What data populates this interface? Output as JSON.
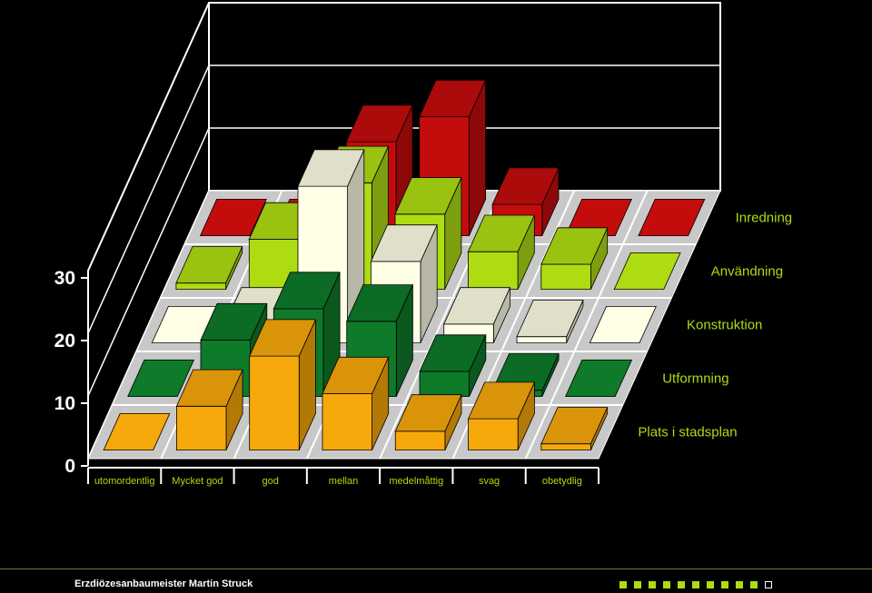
{
  "chart_data": {
    "type": "bar3d",
    "categories": [
      "utomordentlig",
      "Mycket god",
      "god",
      "mellan",
      "medelmåttig",
      "svag",
      "obetydlig"
    ],
    "ylim": [
      0,
      30
    ],
    "yticks": [
      0,
      10,
      20,
      30
    ],
    "series": [
      {
        "name": "Plats i stadsplan",
        "color": "#F7A80A",
        "values": [
          0,
          7,
          15,
          9,
          3,
          5,
          1
        ]
      },
      {
        "name": "Utformning",
        "color": "#0E7A2A",
        "values": [
          0,
          9,
          14,
          12,
          4,
          1,
          0
        ]
      },
      {
        "name": "Konstruktion",
        "color": "#FFFFE6",
        "values": [
          0,
          3,
          25,
          13,
          3,
          1,
          0
        ]
      },
      {
        "name": "Användning",
        "color": "#AEDC13",
        "values": [
          1,
          8,
          17,
          12,
          6,
          4,
          0
        ]
      },
      {
        "name": "Inredning",
        "color": "#C40C0C",
        "values": [
          0,
          0,
          15,
          19,
          5,
          0,
          0
        ]
      }
    ]
  },
  "footer": {
    "text": "Erzdiözesanbaumeister Martin Struck",
    "dot_count": 11,
    "active_dots": 10,
    "dot_color": "#AEDC13"
  }
}
